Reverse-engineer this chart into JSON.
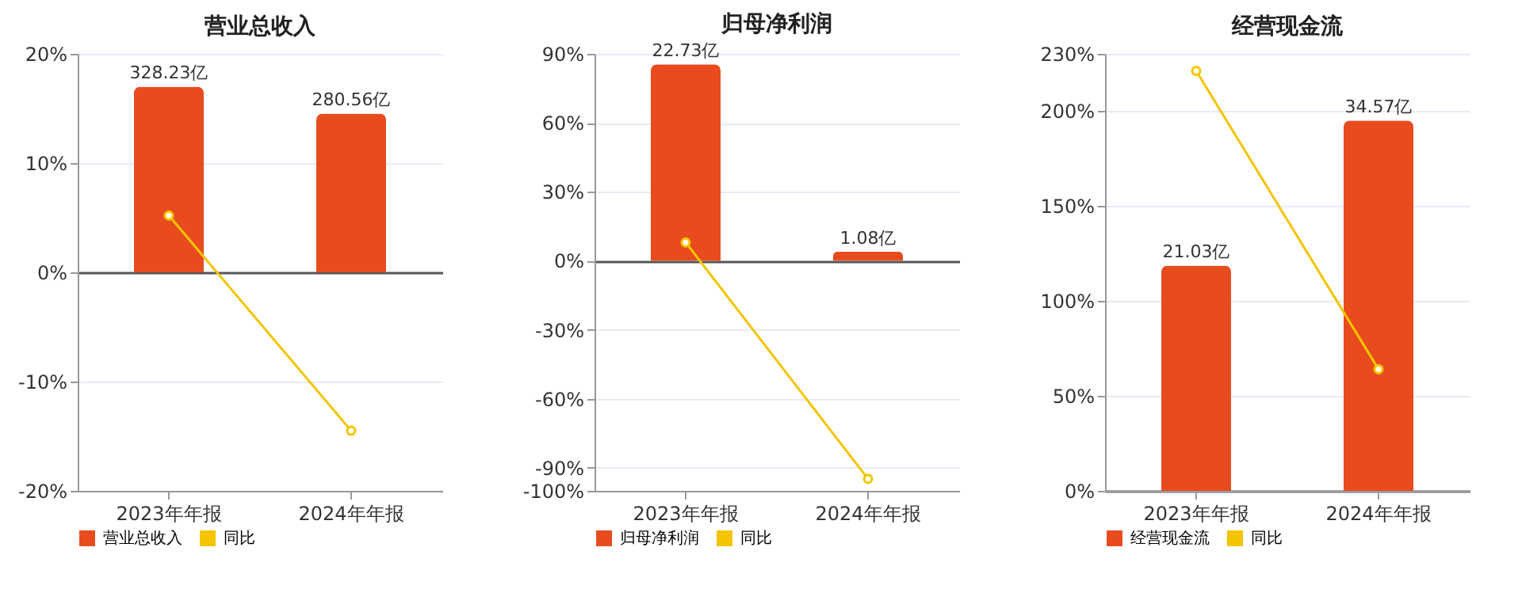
{
  "chart_data": [
    {
      "type": "bar",
      "title": "营业总收入",
      "categories": [
        "2023年年报",
        "2024年年报"
      ],
      "series": [
        {
          "name": "营业总收入",
          "type": "bar",
          "axis": "y2",
          "color": "#e84c1e",
          "values": [
            328.23,
            280.56
          ],
          "value_labels": [
            "328.23亿",
            "280.56亿"
          ]
        },
        {
          "name": "同比",
          "type": "line",
          "color": "#f5c400",
          "values": [
            5.2,
            -14.5
          ]
        }
      ],
      "ylim": [
        -20,
        20
      ],
      "yticks": [
        {
          "value": -20,
          "label": "-20%"
        },
        {
          "value": -10,
          "label": "-10%"
        },
        {
          "value": 0,
          "label": "0%"
        },
        {
          "value": 10,
          "label": "10%"
        },
        {
          "value": 20,
          "label": "20%"
        }
      ],
      "y2lim": [
        -386.2,
        386.2
      ],
      "grid": "y",
      "legend": "bottom",
      "marker": "circle"
    },
    {
      "type": "bar",
      "title": "归母净利润",
      "categories": [
        "2023年年报",
        "2024年年报"
      ],
      "series": [
        {
          "name": "归母净利润",
          "type": "bar",
          "axis": "y2",
          "color": "#e84c1e",
          "values": [
            22.73,
            1.08
          ],
          "value_labels": [
            "22.73亿",
            "1.08亿"
          ]
        },
        {
          "name": "同比",
          "type": "line",
          "color": "#f5c400",
          "values": [
            8.0,
            -94.8
          ]
        }
      ],
      "ylim": [
        -100,
        90
      ],
      "yticks": [
        {
          "value": -100,
          "label": "-100%"
        },
        {
          "value": -90,
          "label": "-90%"
        },
        {
          "value": -60,
          "label": "-60%"
        },
        {
          "value": -30,
          "label": "-30%"
        },
        {
          "value": 0,
          "label": "0%"
        },
        {
          "value": 30,
          "label": "30%"
        },
        {
          "value": 60,
          "label": "60%"
        },
        {
          "value": 90,
          "label": "90%"
        }
      ],
      "y2lim": [
        -26.6,
        23.95
      ],
      "grid": "y",
      "legend": "bottom",
      "marker": "circle"
    },
    {
      "type": "bar",
      "title": "经营现金流",
      "categories": [
        "2023年年报",
        "2024年年报"
      ],
      "series": [
        {
          "name": "经营现金流",
          "type": "bar",
          "axis": "y2",
          "color": "#e84c1e",
          "values": [
            21.03,
            34.57
          ],
          "value_labels": [
            "21.03亿",
            "34.57亿"
          ]
        },
        {
          "name": "同比",
          "type": "line",
          "color": "#f5c400",
          "values": [
            221,
            64
          ]
        }
      ],
      "ylim": [
        0,
        230
      ],
      "yticks": [
        {
          "value": 0,
          "label": "0%"
        },
        {
          "value": 50,
          "label": "50%"
        },
        {
          "value": 100,
          "label": "100%"
        },
        {
          "value": 150,
          "label": "150%"
        },
        {
          "value": 200,
          "label": "200%"
        },
        {
          "value": 230,
          "label": "230%"
        }
      ],
      "y2lim": [
        0,
        40.8
      ],
      "grid": "y",
      "legend": "bottom",
      "marker": "circle"
    }
  ]
}
